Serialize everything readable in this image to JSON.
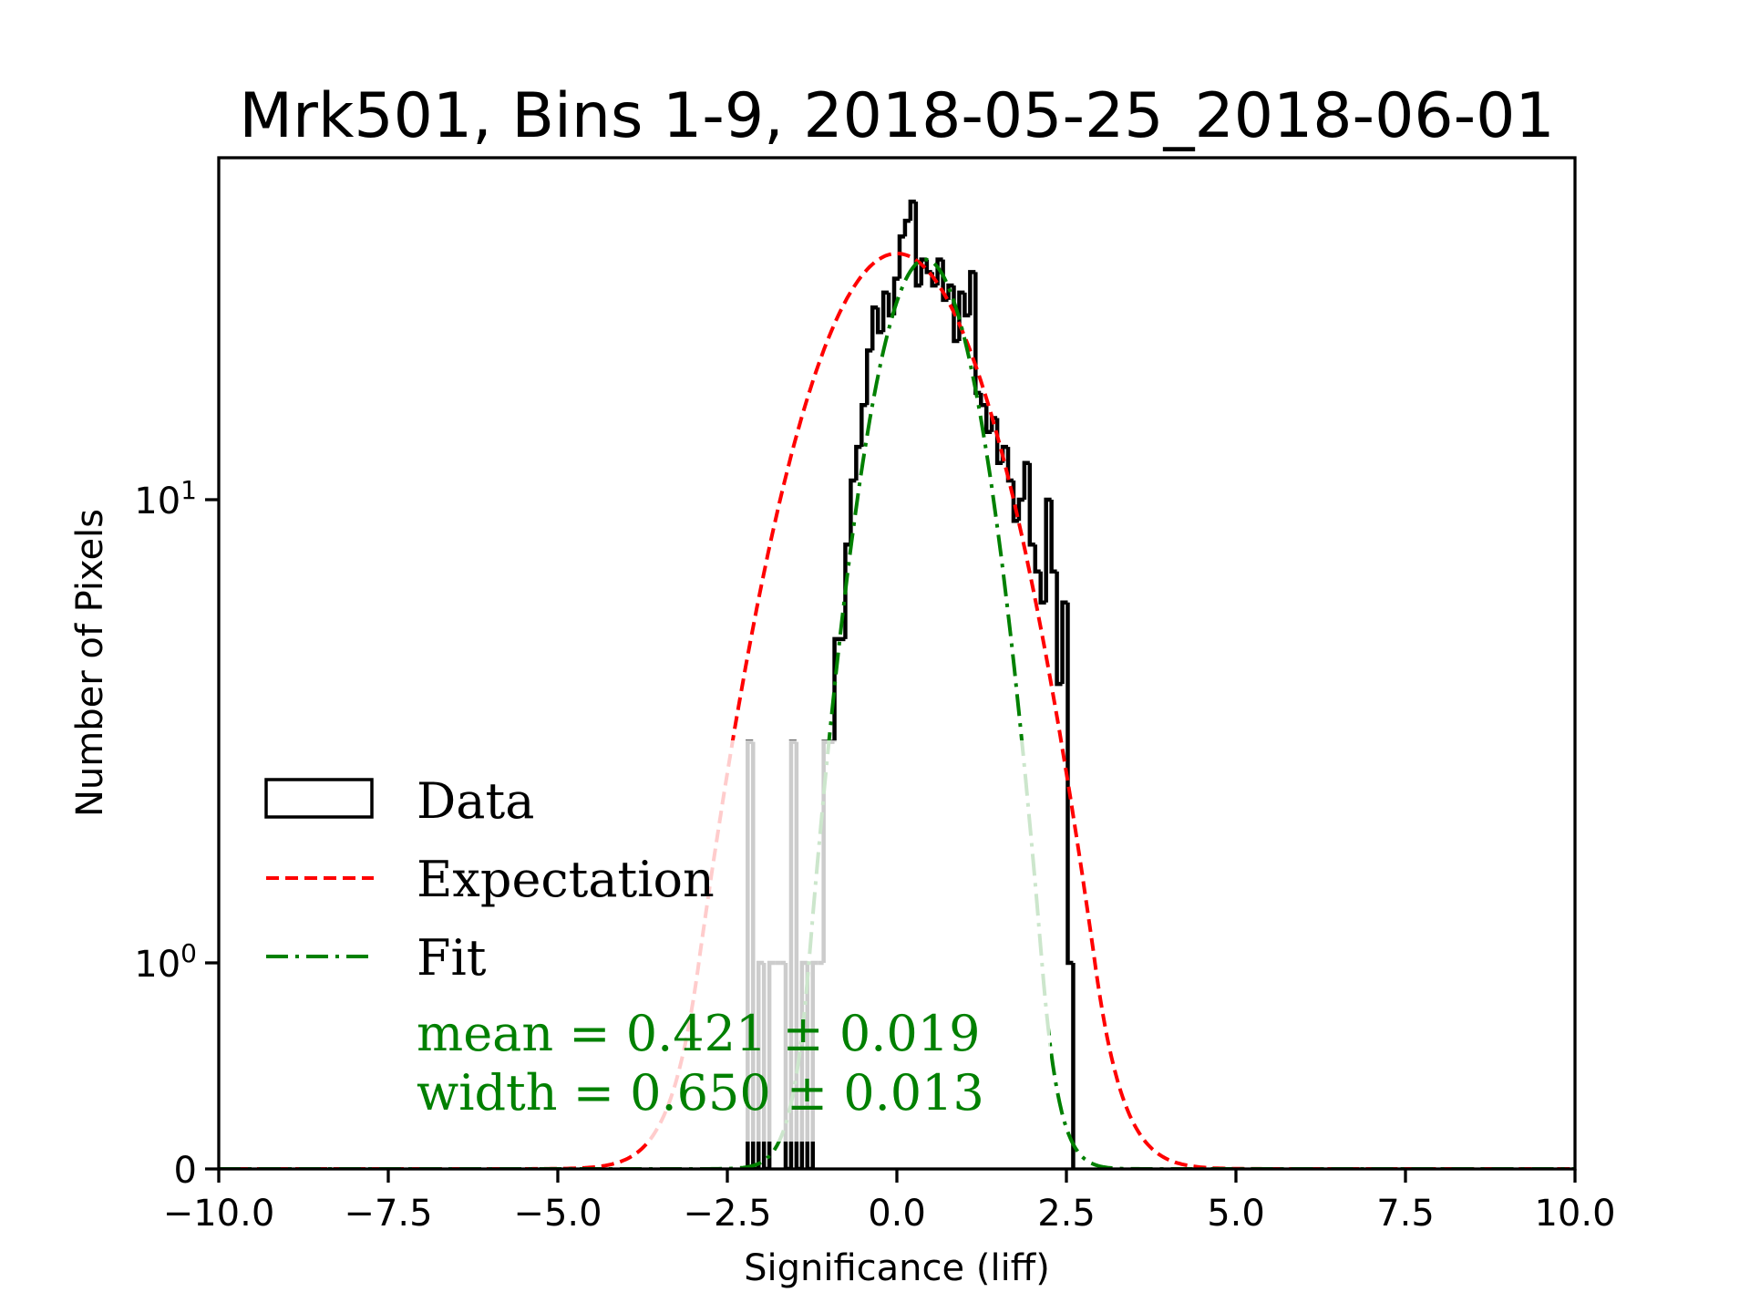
{
  "chart_data": {
    "type": "histogram",
    "title": "Mrk501, Bins 1-9, 2018-05-25_2018-06-01",
    "xlabel": "Significance (liff)",
    "ylabel": "Number of Pixels",
    "xlim": [
      -10,
      10
    ],
    "yscale": "symlog",
    "ylim": [
      0,
      68
    ],
    "linthresh": 1,
    "grid": false,
    "xticks": [
      {
        "value": -10,
        "label": "−10.0"
      },
      {
        "value": -7.5,
        "label": "−7.5"
      },
      {
        "value": -5,
        "label": "−5.0"
      },
      {
        "value": -2.5,
        "label": "−2.5"
      },
      {
        "value": 0,
        "label": "0.0"
      },
      {
        "value": 2.5,
        "label": "2.5"
      },
      {
        "value": 5,
        "label": "5.0"
      },
      {
        "value": 7.5,
        "label": "7.5"
      },
      {
        "value": 10,
        "label": "10.0"
      }
    ],
    "yticks": [
      {
        "value": 0,
        "base": "0",
        "exp": ""
      },
      {
        "value": 1,
        "base": "10",
        "exp": "0"
      },
      {
        "value": 10,
        "base": "10",
        "exp": "1"
      }
    ],
    "histogram": {
      "name": "Data",
      "color": "#000000",
      "bin_start": -2.2,
      "bin_width": 0.08,
      "counts": [
        3,
        0,
        1,
        0,
        1,
        1,
        1,
        0,
        3,
        0,
        1,
        0,
        1,
        1,
        3,
        3,
        5,
        5,
        8,
        11,
        13,
        16,
        21,
        26,
        23,
        28,
        25,
        30,
        37,
        40,
        44,
        29,
        33,
        31,
        29,
        33,
        27,
        29,
        22,
        28,
        25,
        31,
        17,
        16,
        14,
        15,
        12,
        13,
        11,
        9,
        10,
        12,
        8,
        7,
        6,
        10,
        7,
        4,
        6,
        1
      ]
    },
    "expectation": {
      "name": "Expectation",
      "color": "#ff0000",
      "mean": 0.0,
      "sigma": 1.1,
      "amplitude": 34
    },
    "fit": {
      "name": "Fit",
      "color": "#008000",
      "mean": 0.421,
      "sigma": 0.65,
      "amplitude": 33
    },
    "legend": {
      "placement": "lower-left",
      "entries": [
        "Data",
        "Expectation",
        "Fit"
      ]
    },
    "annotations": {
      "mean": "mean = 0.421 ± 0.019",
      "width": "width = 0.650 ± 0.013",
      "color": "#008000"
    }
  }
}
